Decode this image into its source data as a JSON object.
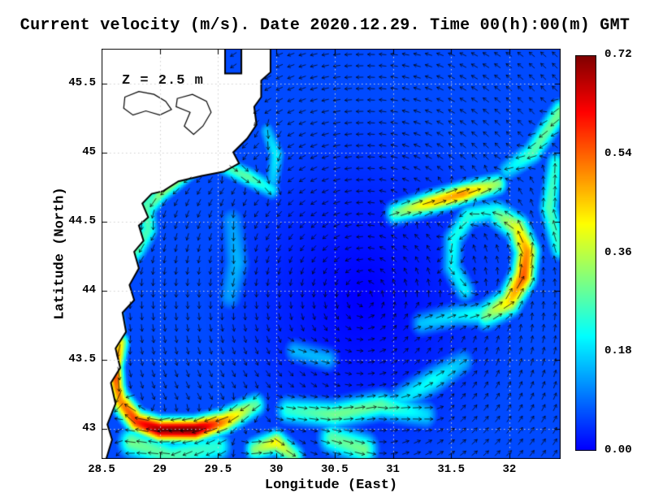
{
  "title": "Current velocity (m/s). Date 2020.12.29. Time 00(h):00(m) GMT",
  "annotation": "Z = 2.5 m",
  "axes": {
    "x_label": "Longitude (East)",
    "y_label": "Latitude (North)",
    "x_ticks": [
      {
        "value": 28.5,
        "label": "28.5"
      },
      {
        "value": 29,
        "label": "29"
      },
      {
        "value": 29.5,
        "label": "29.5"
      },
      {
        "value": 30,
        "label": "30"
      },
      {
        "value": 30.5,
        "label": "30.5"
      },
      {
        "value": 31,
        "label": "31"
      },
      {
        "value": 31.5,
        "label": "31.5"
      },
      {
        "value": 32,
        "label": "32"
      }
    ],
    "y_ticks": [
      {
        "value": 43,
        "label": "43"
      },
      {
        "value": 43.5,
        "label": "43.5"
      },
      {
        "value": 44,
        "label": "44"
      },
      {
        "value": 44.5,
        "label": "44.5"
      },
      {
        "value": 45,
        "label": "45"
      },
      {
        "value": 45.5,
        "label": "45.5"
      }
    ]
  },
  "colorbar": {
    "range": [
      0,
      0.72
    ],
    "ticks": [
      {
        "value": 0.72,
        "label": "0.72"
      },
      {
        "value": 0.54,
        "label": "0.54"
      },
      {
        "value": 0.36,
        "label": "0.36"
      },
      {
        "value": 0.18,
        "label": "0.18"
      },
      {
        "value": 0,
        "label": "0.00"
      }
    ],
    "colormap": "jet"
  },
  "chart_data": {
    "type": "heatmap",
    "quantity": "sea current speed (m/s) at depth 2.5 m, with direction arrows (quiver)",
    "region": "western Black Sea",
    "lon_range": [
      28.5,
      32.44
    ],
    "lat_range": [
      42.78,
      45.75
    ],
    "speed_range": [
      0,
      0.72
    ],
    "background_speed": 0.05,
    "ambient": {
      "gyre": {
        "center": [
          30.75,
          43.95
        ],
        "radius": 1.2,
        "speed": 0.055,
        "sense": "cyclonic"
      }
    },
    "arrow_grid": {
      "nx": 40,
      "ny": 36
    },
    "features": [
      {
        "name": "south_coastal_jet",
        "width": 0.06,
        "peaks": [
          0.28,
          0.5,
          0.72,
          0.7,
          0.58,
          0.5
        ],
        "path": [
          [
            29.82,
            43.17
          ],
          [
            29.55,
            43.05
          ],
          [
            29.3,
            42.99
          ],
          [
            29.0,
            42.99
          ],
          [
            28.8,
            43.05
          ],
          [
            28.66,
            43.2
          ]
        ]
      },
      {
        "name": "west_coast_jet_south",
        "width": 0.05,
        "peaks": [
          0.42,
          0.6,
          0.52,
          0.5
        ],
        "path": [
          [
            28.66,
            43.62
          ],
          [
            28.61,
            43.45
          ],
          [
            28.63,
            43.3
          ],
          [
            28.67,
            43.18
          ]
        ]
      },
      {
        "name": "west_coast_jet_mid",
        "width": 0.05,
        "peaks": [
          0.28,
          0.5,
          0.44,
          0.3
        ],
        "path": [
          [
            28.6,
            44.22
          ],
          [
            28.64,
            44.02
          ],
          [
            28.6,
            43.86
          ],
          [
            28.64,
            43.7
          ]
        ]
      },
      {
        "name": "coastal_band_north",
        "width": 0.06,
        "peaks": [
          0.22,
          0.28,
          0.26,
          0.28,
          0.24
        ],
        "path": [
          [
            28.98,
            44.76
          ],
          [
            28.88,
            44.6
          ],
          [
            28.9,
            44.44
          ],
          [
            28.8,
            44.3
          ],
          [
            28.7,
            44.2
          ]
        ]
      },
      {
        "name": "cape_diagonal_band",
        "width": 0.05,
        "peaks": [
          0.28,
          0.36,
          0.32,
          0.24
        ],
        "path": [
          [
            29.4,
            44.96
          ],
          [
            29.2,
            44.84
          ],
          [
            29.0,
            44.7
          ],
          [
            28.9,
            44.58
          ]
        ]
      },
      {
        "name": "cape_plume_east",
        "width": 0.05,
        "peaks": [
          0.26,
          0.28,
          0.2
        ],
        "path": [
          [
            29.56,
            44.9
          ],
          [
            29.76,
            44.82
          ],
          [
            29.96,
            44.73
          ]
        ]
      },
      {
        "name": "east_eddy_outer_arc",
        "width": 0.07,
        "peaks": [
          0.3,
          0.44,
          0.55,
          0.5,
          0.4,
          0.28
        ],
        "path": [
          [
            31.8,
            43.82
          ],
          [
            32.0,
            43.92
          ],
          [
            32.12,
            44.1
          ],
          [
            32.15,
            44.28
          ],
          [
            32.07,
            44.45
          ],
          [
            31.9,
            44.55
          ]
        ]
      },
      {
        "name": "east_eddy_west_arc",
        "width": 0.06,
        "peaks": [
          0.22,
          0.24,
          0.22,
          0.2,
          0.2
        ],
        "path": [
          [
            31.88,
            44.58
          ],
          [
            31.65,
            44.54
          ],
          [
            31.52,
            44.37
          ],
          [
            31.51,
            44.17
          ],
          [
            31.62,
            44.0
          ]
        ]
      },
      {
        "name": "northeast_streak",
        "width": 0.055,
        "peaks": [
          0.28,
          0.44,
          0.5,
          0.32
        ],
        "path": [
          [
            31.02,
            44.56
          ],
          [
            31.3,
            44.63
          ],
          [
            31.6,
            44.7
          ],
          [
            31.9,
            44.77
          ]
        ]
      },
      {
        "name": "ne_corner_band",
        "width": 0.06,
        "peaks": [
          0.3,
          0.27,
          0.18
        ],
        "path": [
          [
            32.44,
            45.3
          ],
          [
            32.2,
            45.0
          ],
          [
            31.98,
            44.87
          ]
        ]
      },
      {
        "name": "east_edge_band",
        "width": 0.06,
        "peaks": [
          0.24,
          0.27,
          0.24
        ],
        "path": [
          [
            32.43,
            44.3
          ],
          [
            32.34,
            44.6
          ],
          [
            32.4,
            44.92
          ]
        ]
      },
      {
        "name": "south_band",
        "width": 0.07,
        "peaks": [
          0.24,
          0.3,
          0.28,
          0.18
        ],
        "path": [
          [
            30.1,
            43.13
          ],
          [
            30.5,
            43.1
          ],
          [
            30.9,
            43.17
          ],
          [
            31.28,
            43.1
          ]
        ]
      },
      {
        "name": "south_blob",
        "width": 0.08,
        "peaks": [
          0.28,
          0.3
        ],
        "path": [
          [
            30.48,
            42.93
          ],
          [
            30.75,
            42.85
          ]
        ]
      },
      {
        "name": "south_diagonal",
        "width": 0.07,
        "peaks": [
          0.18,
          0.22,
          0.15
        ],
        "path": [
          [
            31.05,
            43.2
          ],
          [
            31.35,
            43.35
          ],
          [
            31.6,
            43.48
          ]
        ]
      },
      {
        "name": "bottom_green_blob",
        "width": 0.06,
        "peaks": [
          0.32,
          0.42,
          0.3
        ],
        "path": [
          [
            29.82,
            42.85
          ],
          [
            30.0,
            42.9
          ],
          [
            30.15,
            42.8
          ]
        ]
      },
      {
        "name": "under_jet_band",
        "width": 0.08,
        "peaks": [
          0.24,
          0.27,
          0.3
        ],
        "path": [
          [
            29.5,
            42.87
          ],
          [
            29.1,
            42.8
          ],
          [
            28.76,
            42.9
          ]
        ]
      },
      {
        "name": "mid_patch",
        "width": 0.06,
        "peaks": [
          0.15,
          0.15
        ],
        "path": [
          [
            30.16,
            43.56
          ],
          [
            30.44,
            43.5
          ]
        ]
      },
      {
        "name": "delta_coastal_band",
        "width": 0.05,
        "peaks": [
          0.16,
          0.2,
          0.16
        ],
        "path": [
          [
            29.92,
            45.15
          ],
          [
            30.0,
            44.98
          ],
          [
            29.97,
            44.8
          ]
        ]
      },
      {
        "name": "eddy_feed_band",
        "width": 0.06,
        "peaks": [
          0.16,
          0.19,
          0.24
        ],
        "path": [
          [
            31.25,
            43.76
          ],
          [
            31.55,
            43.82
          ],
          [
            31.78,
            43.83
          ]
        ]
      },
      {
        "name": "west_center_faint",
        "width": 0.08,
        "peaks": [
          0.13,
          0.15,
          0.13
        ],
        "path": [
          [
            29.62,
            44.5
          ],
          [
            29.66,
            44.2
          ],
          [
            29.6,
            43.96
          ]
        ]
      }
    ],
    "land": [
      [
        28.5,
        45.75
      ],
      [
        29.56,
        45.75
      ],
      [
        29.56,
        45.57
      ],
      [
        29.7,
        45.57
      ],
      [
        29.7,
        45.75
      ],
      [
        29.95,
        45.75
      ],
      [
        29.95,
        45.58
      ],
      [
        29.87,
        45.52
      ],
      [
        29.87,
        45.4
      ],
      [
        29.81,
        45.33
      ],
      [
        29.83,
        45.2
      ],
      [
        29.75,
        45.1
      ],
      [
        29.63,
        45.0
      ],
      [
        29.68,
        44.92
      ],
      [
        29.55,
        44.86
      ],
      [
        29.36,
        44.83
      ],
      [
        29.16,
        44.79
      ],
      [
        29.03,
        44.72
      ],
      [
        28.93,
        44.7
      ],
      [
        28.85,
        44.63
      ],
      [
        28.9,
        44.53
      ],
      [
        28.82,
        44.47
      ],
      [
        28.86,
        44.36
      ],
      [
        28.78,
        44.28
      ],
      [
        28.82,
        44.16
      ],
      [
        28.74,
        44.04
      ],
      [
        28.78,
        43.93
      ],
      [
        28.68,
        43.84
      ],
      [
        28.71,
        43.7
      ],
      [
        28.62,
        43.58
      ],
      [
        28.66,
        43.44
      ],
      [
        28.58,
        43.33
      ],
      [
        28.62,
        43.18
      ],
      [
        28.55,
        43.03
      ],
      [
        28.59,
        42.92
      ],
      [
        28.54,
        42.78
      ],
      [
        28.5,
        42.78
      ]
    ],
    "lakes": [
      [
        [
          28.7,
          45.4
        ],
        [
          28.82,
          45.44
        ],
        [
          28.95,
          45.42
        ],
        [
          29.05,
          45.37
        ],
        [
          29.1,
          45.31
        ],
        [
          29.0,
          45.27
        ],
        [
          28.88,
          45.3
        ],
        [
          28.77,
          45.27
        ],
        [
          28.69,
          45.32
        ]
      ],
      [
        [
          29.15,
          45.39
        ],
        [
          29.28,
          45.42
        ],
        [
          29.4,
          45.37
        ],
        [
          29.44,
          45.29
        ],
        [
          29.37,
          45.19
        ],
        [
          29.29,
          45.13
        ],
        [
          29.21,
          45.19
        ],
        [
          29.26,
          45.29
        ],
        [
          29.14,
          45.33
        ]
      ]
    ]
  }
}
